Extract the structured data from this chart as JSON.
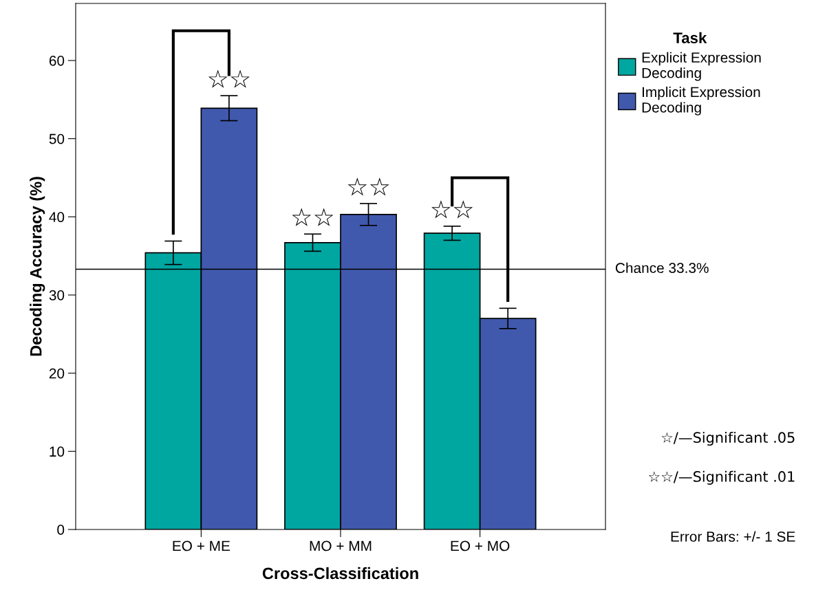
{
  "chart_data": {
    "type": "bar",
    "xlabel": "Cross-Classification",
    "ylabel": "Decoding Accuracy (%)",
    "legend_title": "Task",
    "categories": [
      "EO + ME",
      "MO + MM",
      "EO + MO"
    ],
    "series": [
      {
        "name": "Explicit Expression\nDecoding",
        "color": "#00a6a0",
        "values": [
          35.4,
          36.7,
          37.9
        ],
        "errors": [
          1.5,
          1.1,
          0.9
        ]
      },
      {
        "name": "Implicit Expression\nDecoding",
        "color": "#4059ad",
        "values": [
          53.9,
          40.3,
          27.0
        ],
        "errors": [
          1.6,
          1.4,
          1.3
        ]
      }
    ],
    "ylim": [
      0,
      67.3
    ],
    "yticks": [
      0,
      10,
      20,
      30,
      40,
      50,
      60
    ],
    "grid": false,
    "legend": "top right",
    "ref_lines": [
      {
        "axis": "y",
        "value": 33.3,
        "label": "Chance 33.3%",
        "color": "#000000"
      }
    ],
    "annotations": [
      "☆☆",
      "☆☆",
      "☆☆",
      "☆☆",
      "☆/—Significant .05",
      "☆☆/—Significant .01",
      "Error Bars: +/- 1 SE"
    ]
  }
}
